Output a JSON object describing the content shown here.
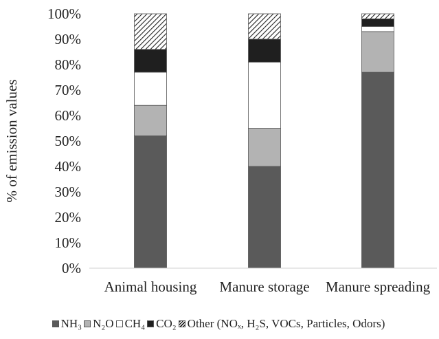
{
  "chart_data": {
    "type": "bar",
    "stacked": true,
    "categories": [
      "Animal housing",
      "Manure storage",
      "Manure spreading"
    ],
    "series": [
      {
        "name": "NH₃",
        "color": "#5a5a5a",
        "pattern": "solid",
        "values": [
          52,
          40,
          77
        ]
      },
      {
        "name": "N₂O",
        "color": "#b3b3b3",
        "pattern": "solid",
        "values": [
          12,
          15,
          16
        ]
      },
      {
        "name": "CH₄",
        "color": "#ffffff",
        "pattern": "solid",
        "values": [
          13,
          26,
          2
        ]
      },
      {
        "name": "CO₂",
        "color": "#1f1f1f",
        "pattern": "solid",
        "values": [
          9,
          9,
          3
        ]
      },
      {
        "name": "Other (NOₓ, H₂S, VOCs, Particles, Odors)",
        "color": "#222222",
        "pattern": "diagonal-hatch",
        "values": [
          14,
          10,
          2
        ]
      }
    ],
    "ylabel": "% of emission values",
    "xlabel": "",
    "ylim": [
      0,
      100
    ],
    "yticks": [
      "0%",
      "10%",
      "20%",
      "30%",
      "40%",
      "50%",
      "60%",
      "70%",
      "80%",
      "90%",
      "100%"
    ],
    "grid": false,
    "legend_position": "bottom"
  }
}
